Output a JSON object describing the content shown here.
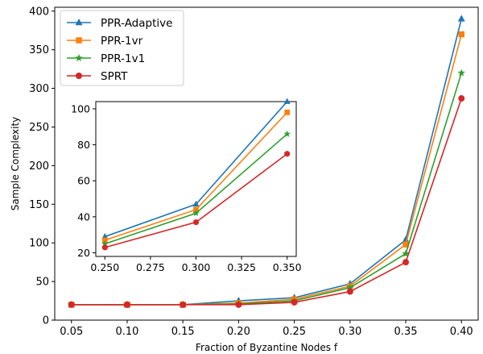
{
  "chart_data": [
    {
      "type": "line",
      "title": "",
      "xlabel": "Fraction of Byzantine Nodes f",
      "ylabel": "Sample Complexity",
      "x": [
        0.05,
        0.1,
        0.15,
        0.2,
        0.25,
        0.3,
        0.35,
        0.4
      ],
      "x_tick_labels": [
        "0.05",
        "0.10",
        "0.15",
        "0.20",
        "0.25",
        "0.30",
        "0.35",
        "0.40"
      ],
      "y_ticks": [
        0,
        50,
        100,
        150,
        200,
        250,
        300,
        350,
        400
      ],
      "xlim": [
        0.035,
        0.415
      ],
      "ylim": [
        0,
        405
      ],
      "grid": false,
      "legend": "top-left",
      "series": [
        {
          "name": "PPR-Adaptive",
          "color": "#1f77b4",
          "marker": "triangle",
          "values": [
            20,
            20,
            20,
            25,
            29,
            47,
            104,
            390
          ]
        },
        {
          "name": "PPR-1vr",
          "color": "#ff7f0e",
          "marker": "square",
          "values": [
            20,
            20,
            20,
            22,
            27,
            44,
            98,
            370
          ]
        },
        {
          "name": "PPR-1v1",
          "color": "#2ca02c",
          "marker": "star",
          "values": [
            20,
            20,
            20,
            21,
            25,
            42,
            86,
            320
          ]
        },
        {
          "name": "SPRT",
          "color": "#d62728",
          "marker": "circle",
          "values": [
            20,
            20,
            20,
            20,
            23,
            37,
            75,
            287
          ]
        }
      ]
    },
    {
      "type": "line",
      "title": "",
      "xlabel": "",
      "ylabel": "",
      "x": [
        0.25,
        0.3,
        0.35
      ],
      "x_tick_labels": [
        "0.250",
        "0.275",
        "0.300",
        "0.325",
        "0.350"
      ],
      "x_ticks": [
        0.25,
        0.275,
        0.3,
        0.325,
        0.35
      ],
      "y_ticks": [
        20,
        40,
        60,
        80,
        100
      ],
      "xlim": [
        0.245,
        0.355
      ],
      "ylim": [
        18,
        104
      ],
      "grid": false,
      "series": [
        {
          "name": "PPR-Adaptive",
          "color": "#1f77b4",
          "marker": "triangle",
          "values": [
            29,
            47,
            104
          ]
        },
        {
          "name": "PPR-1vr",
          "color": "#ff7f0e",
          "marker": "square",
          "values": [
            27,
            44,
            98
          ]
        },
        {
          "name": "PPR-1v1",
          "color": "#2ca02c",
          "marker": "star",
          "values": [
            25,
            42,
            86
          ]
        },
        {
          "name": "SPRT",
          "color": "#d62728",
          "marker": "circle",
          "values": [
            23,
            37,
            75
          ]
        }
      ]
    }
  ]
}
